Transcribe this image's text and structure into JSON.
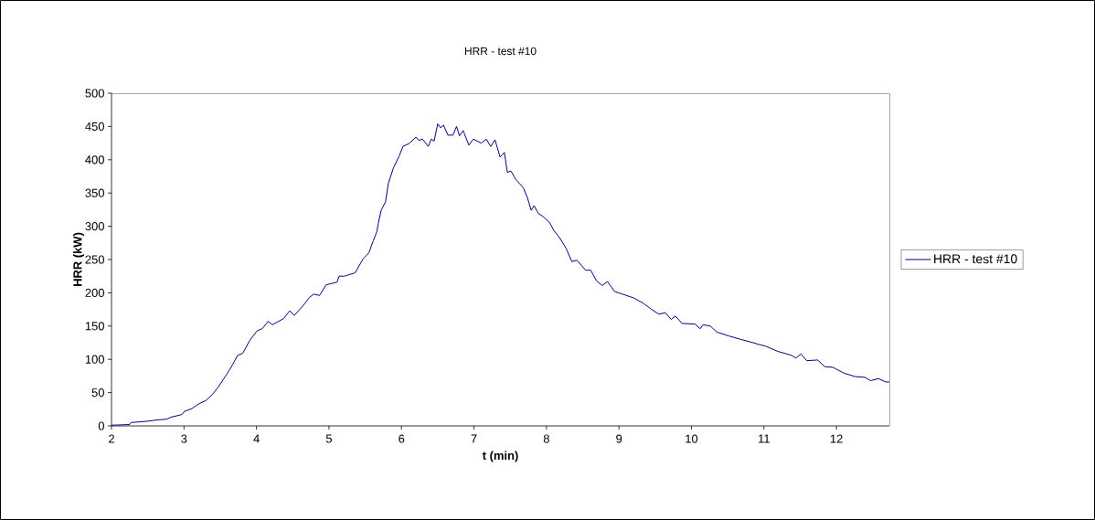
{
  "chart_data": {
    "type": "line",
    "title": "HRR - test #10",
    "xlabel": "t (min)",
    "ylabel": "HRR (kW)",
    "xlim": [
      2,
      12.73
    ],
    "ylim": [
      0,
      500
    ],
    "xticks": [
      2,
      3,
      4,
      5,
      6,
      7,
      8,
      9,
      10,
      11,
      12
    ],
    "yticks": [
      0,
      50,
      100,
      150,
      200,
      250,
      300,
      350,
      400,
      450,
      500
    ],
    "legend": "right",
    "series": [
      {
        "name": "HRR - test #10",
        "color": "#000080",
        "x": [
          2.0,
          2.25,
          2.27,
          2.5,
          2.63,
          2.76,
          2.82,
          2.97,
          3.01,
          3.11,
          3.2,
          3.3,
          3.39,
          3.47,
          3.58,
          3.65,
          3.74,
          3.81,
          3.91,
          4.01,
          4.08,
          4.16,
          4.22,
          4.37,
          4.46,
          4.52,
          4.63,
          4.73,
          4.79,
          4.87,
          4.96,
          5.11,
          5.14,
          5.21,
          5.36,
          5.47,
          5.55,
          5.61,
          5.66,
          5.68,
          5.72,
          5.78,
          5.82,
          5.89,
          5.97,
          6.02,
          6.1,
          6.2,
          6.24,
          6.29,
          6.37,
          6.41,
          6.45,
          6.5,
          6.54,
          6.58,
          6.64,
          6.71,
          6.76,
          6.8,
          6.85,
          6.93,
          6.99,
          7.1,
          7.17,
          7.23,
          7.29,
          7.36,
          7.42,
          7.46,
          7.51,
          7.58,
          7.68,
          7.74,
          7.79,
          7.83,
          7.89,
          7.95,
          8.04,
          8.1,
          8.18,
          8.27,
          8.35,
          8.42,
          8.54,
          8.61,
          8.69,
          8.77,
          8.84,
          8.94,
          9.05,
          9.21,
          9.34,
          9.45,
          9.55,
          9.64,
          9.72,
          9.78,
          9.87,
          10.05,
          10.12,
          10.16,
          10.26,
          10.35,
          10.52,
          10.68,
          10.85,
          10.94,
          11.02,
          11.19,
          11.38,
          11.44,
          11.51,
          11.59,
          11.74,
          11.84,
          11.95,
          12.11,
          12.26,
          12.39,
          12.47,
          12.58,
          12.68,
          12.73
        ],
        "values": [
          1,
          2,
          5,
          7,
          9,
          10,
          13,
          17,
          22,
          26,
          33,
          38,
          47,
          58,
          76,
          88,
          106,
          109,
          129,
          143,
          146,
          157,
          152,
          161,
          173,
          166,
          179,
          193,
          198,
          196,
          212,
          216,
          225,
          225,
          230,
          251,
          260,
          278,
          292,
          304,
          324,
          337,
          365,
          388,
          406,
          420,
          424,
          434,
          429,
          431,
          420,
          431,
          428,
          454,
          448,
          452,
          437,
          437,
          450,
          436,
          444,
          422,
          431,
          425,
          431,
          420,
          430,
          404,
          411,
          381,
          383,
          370,
          358,
          342,
          324,
          331,
          319,
          315,
          306,
          294,
          283,
          267,
          247,
          249,
          234,
          234,
          218,
          211,
          217,
          202,
          198,
          192,
          184,
          175,
          168,
          170,
          160,
          165,
          154,
          153,
          146,
          152,
          150,
          141,
          135,
          130,
          125,
          122,
          120,
          112,
          106,
          102,
          108,
          98,
          99,
          89,
          88,
          79,
          74,
          73,
          68,
          71,
          66,
          66
        ]
      }
    ]
  }
}
